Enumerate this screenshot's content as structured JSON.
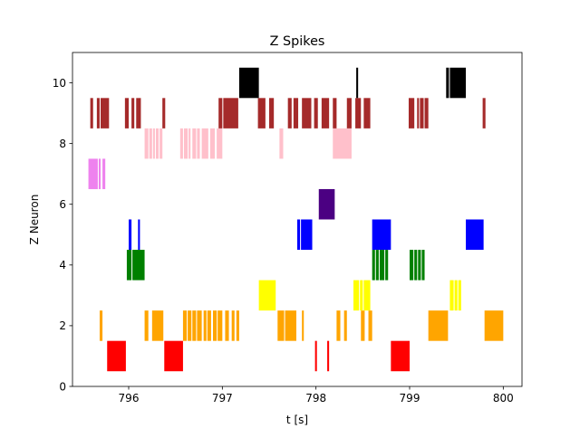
{
  "chart_data": {
    "type": "raster",
    "title": "Z Spikes",
    "xlabel": "t [s]",
    "ylabel": "Z Neuron",
    "xlim": [
      795.4,
      800.2
    ],
    "ylim": [
      0,
      11
    ],
    "xticks": [
      796,
      797,
      798,
      799,
      800
    ],
    "yticks": [
      0,
      2,
      4,
      6,
      8,
      10
    ],
    "xtick_labels": [
      "796",
      "797",
      "798",
      "799",
      "800"
    ],
    "ytick_labels": [
      "0",
      "2",
      "4",
      "6",
      "8",
      "10"
    ],
    "grid": false,
    "legend": "none",
    "rows": [
      {
        "neuron": 1,
        "color": "#ff0000",
        "intervals": [
          [
            795.77,
            795.97
          ],
          [
            796.38,
            796.58
          ],
          [
            797.99,
            798.01
          ],
          [
            798.12,
            798.14
          ],
          [
            798.8,
            799.0
          ]
        ]
      },
      {
        "neuron": 2,
        "color": "#ffa500",
        "intervals": [
          [
            795.69,
            795.72
          ],
          [
            796.17,
            796.21
          ],
          [
            796.25,
            796.37
          ],
          [
            796.58,
            796.62
          ],
          [
            796.63,
            796.67
          ],
          [
            796.68,
            796.72
          ],
          [
            796.73,
            796.78
          ],
          [
            796.8,
            796.83
          ],
          [
            796.84,
            796.88
          ],
          [
            796.9,
            796.94
          ],
          [
            796.95,
            797.0
          ],
          [
            797.03,
            797.07
          ],
          [
            797.1,
            797.13
          ],
          [
            797.15,
            797.18
          ],
          [
            797.59,
            797.66
          ],
          [
            797.67,
            797.79
          ],
          [
            797.85,
            797.87
          ],
          [
            798.22,
            798.26
          ],
          [
            798.3,
            798.33
          ],
          [
            798.48,
            798.52
          ],
          [
            798.56,
            798.6
          ],
          [
            799.2,
            799.41
          ],
          [
            799.8,
            800.0
          ]
        ]
      },
      {
        "neuron": 3,
        "color": "#ffff00",
        "intervals": [
          [
            797.39,
            797.57
          ],
          [
            798.4,
            798.46
          ],
          [
            798.47,
            798.5
          ],
          [
            798.51,
            798.58
          ],
          [
            799.43,
            799.47
          ],
          [
            799.48,
            799.51
          ],
          [
            799.52,
            799.55
          ]
        ]
      },
      {
        "neuron": 4,
        "color": "#008000",
        "intervals": [
          [
            795.98,
            796.03
          ],
          [
            796.04,
            796.17
          ],
          [
            798.6,
            798.63
          ],
          [
            798.64,
            798.67
          ],
          [
            798.68,
            798.73
          ],
          [
            798.74,
            798.77
          ],
          [
            799.0,
            799.04
          ],
          [
            799.05,
            799.08
          ],
          [
            799.09,
            799.12
          ],
          [
            799.13,
            799.16
          ]
        ]
      },
      {
        "neuron": 5,
        "color": "#0000ff",
        "intervals": [
          [
            796.0,
            796.03
          ],
          [
            796.1,
            796.12
          ],
          [
            797.8,
            797.83
          ],
          [
            797.84,
            797.96
          ],
          [
            798.6,
            798.8
          ],
          [
            799.6,
            799.79
          ]
        ]
      },
      {
        "neuron": 6,
        "color": "#4b0082",
        "intervals": [
          [
            798.03,
            798.2
          ]
        ]
      },
      {
        "neuron": 7,
        "color": "#ee82ee",
        "intervals": [
          [
            795.57,
            795.67
          ],
          [
            795.68,
            795.7
          ],
          [
            795.72,
            795.75
          ]
        ]
      },
      {
        "neuron": 8,
        "color": "#ffc0cb",
        "intervals": [
          [
            796.17,
            796.21
          ],
          [
            796.22,
            796.25
          ],
          [
            796.26,
            796.28
          ],
          [
            796.29,
            796.32
          ],
          [
            796.33,
            796.36
          ],
          [
            796.55,
            796.58
          ],
          [
            796.59,
            796.63
          ],
          [
            796.64,
            796.66
          ],
          [
            796.68,
            796.72
          ],
          [
            796.73,
            796.76
          ],
          [
            796.78,
            796.85
          ],
          [
            796.87,
            796.92
          ],
          [
            796.94,
            797.0
          ],
          [
            797.61,
            797.65
          ],
          [
            798.18,
            798.38
          ]
        ]
      },
      {
        "neuron": 9,
        "color": "#a52a2a",
        "intervals": [
          [
            795.59,
            795.62
          ],
          [
            795.66,
            795.69
          ],
          [
            795.7,
            795.79
          ],
          [
            795.96,
            796.0
          ],
          [
            796.03,
            796.06
          ],
          [
            796.08,
            796.13
          ],
          [
            796.36,
            796.39
          ],
          [
            796.96,
            797.0
          ],
          [
            797.01,
            797.17
          ],
          [
            797.38,
            797.46
          ],
          [
            797.5,
            797.55
          ],
          [
            797.7,
            797.74
          ],
          [
            797.76,
            797.81
          ],
          [
            797.85,
            797.95
          ],
          [
            797.98,
            798.02
          ],
          [
            798.06,
            798.14
          ],
          [
            798.18,
            798.22
          ],
          [
            798.33,
            798.38
          ],
          [
            798.42,
            798.48
          ],
          [
            798.51,
            798.58
          ],
          [
            798.99,
            799.05
          ],
          [
            799.08,
            799.1
          ],
          [
            799.11,
            799.15
          ],
          [
            799.16,
            799.2
          ],
          [
            799.78,
            799.81
          ]
        ]
      },
      {
        "neuron": 10,
        "color": "#000000",
        "intervals": [
          [
            797.18,
            797.39
          ],
          [
            798.43,
            798.45
          ],
          [
            799.39,
            799.42
          ],
          [
            799.43,
            799.6
          ]
        ]
      }
    ]
  }
}
